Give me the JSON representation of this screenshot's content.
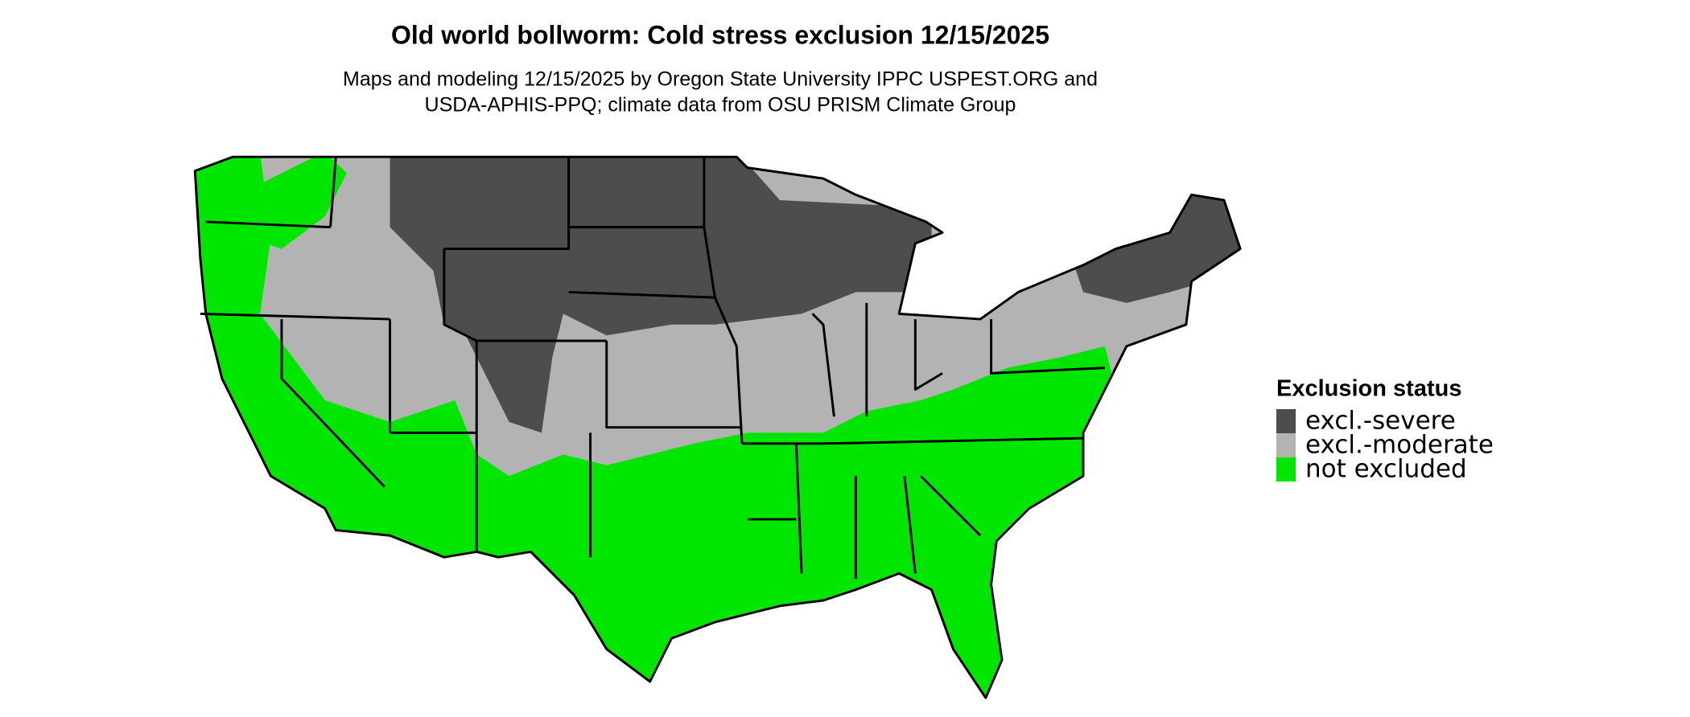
{
  "title": "Old world bollworm: Cold stress exclusion 12/15/2025",
  "subtitle": [
    "Maps and modeling 12/15/2025 by Oregon State University IPPC USPEST.ORG and",
    "USDA-APHIS-PPQ; climate data from OSU PRISM Climate Group"
  ],
  "legend": {
    "title": "Exclusion status",
    "items": [
      {
        "label": "excl.-severe",
        "color": "#4d4d4d"
      },
      {
        "label": "excl.-moderate",
        "color": "#b3b3b3"
      },
      {
        "label": "not excluded",
        "color": "#00e600"
      }
    ]
  }
}
